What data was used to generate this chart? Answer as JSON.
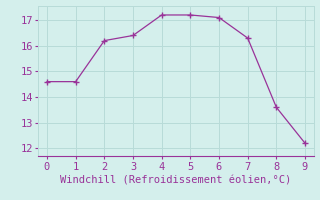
{
  "x": [
    0,
    1,
    2,
    3,
    4,
    5,
    6,
    7,
    8,
    9
  ],
  "y": [
    14.6,
    14.6,
    16.2,
    16.4,
    17.2,
    17.2,
    17.1,
    16.3,
    13.6,
    12.2
  ],
  "line_color": "#993399",
  "marker": "+",
  "marker_size": 4,
  "marker_lw": 1.0,
  "xlabel": "Windchill (Refroidissement éolien,°C)",
  "xlabel_color": "#993399",
  "background_color": "#d4efec",
  "grid_color": "#b8dbd8",
  "tick_color": "#993399",
  "spine_color": "#993399",
  "xlim": [
    -0.3,
    9.3
  ],
  "ylim": [
    11.7,
    17.55
  ],
  "xticks": [
    0,
    1,
    2,
    3,
    4,
    5,
    6,
    7,
    8,
    9
  ],
  "yticks": [
    12,
    13,
    14,
    15,
    16,
    17
  ],
  "label_fontsize": 7.5,
  "tick_fontsize": 7.5
}
